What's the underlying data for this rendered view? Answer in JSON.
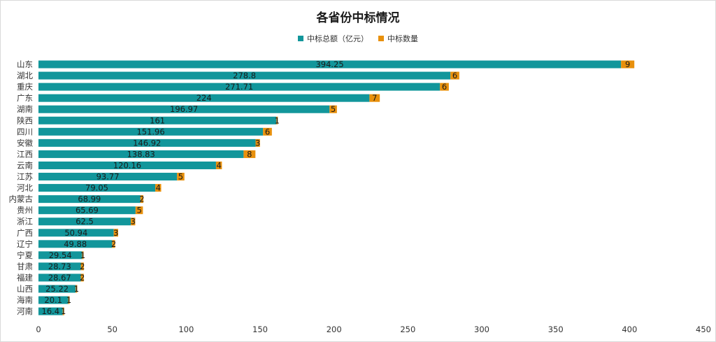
{
  "chart_data": {
    "type": "bar",
    "orientation": "horizontal",
    "stacked": true,
    "title": "各省份中标情况",
    "legend_position": "top-center",
    "xlim": [
      0,
      450
    ],
    "x_ticks": [
      0,
      50,
      100,
      150,
      200,
      250,
      300,
      350,
      400,
      450
    ],
    "grid": false,
    "categories": [
      "山东",
      "湖北",
      "重庆",
      "广东",
      "湖南",
      "陕西",
      "四川",
      "安徽",
      "江西",
      "云南",
      "江苏",
      "河北",
      "内蒙古",
      "贵州",
      "浙江",
      "广西",
      "辽宁",
      "宁夏",
      "甘肃",
      "福建",
      "山西",
      "海南",
      "河南"
    ],
    "series": [
      {
        "name": "中标总额（亿元）",
        "color": "#12969b",
        "values": [
          394.25,
          278.8,
          271.71,
          224,
          196.97,
          161,
          151.96,
          146.92,
          138.83,
          120.16,
          93.77,
          79.05,
          68.99,
          65.69,
          62.5,
          50.94,
          49.88,
          29.54,
          28.73,
          28.67,
          25.22,
          20.1,
          16.4
        ]
      },
      {
        "name": "中标数量",
        "color": "#e8900c",
        "values": [
          9,
          6,
          6,
          7,
          5,
          1,
          6,
          3,
          8,
          4,
          5,
          4,
          2,
          5,
          3,
          3,
          2,
          1,
          2,
          2,
          1,
          1,
          1
        ]
      }
    ]
  }
}
